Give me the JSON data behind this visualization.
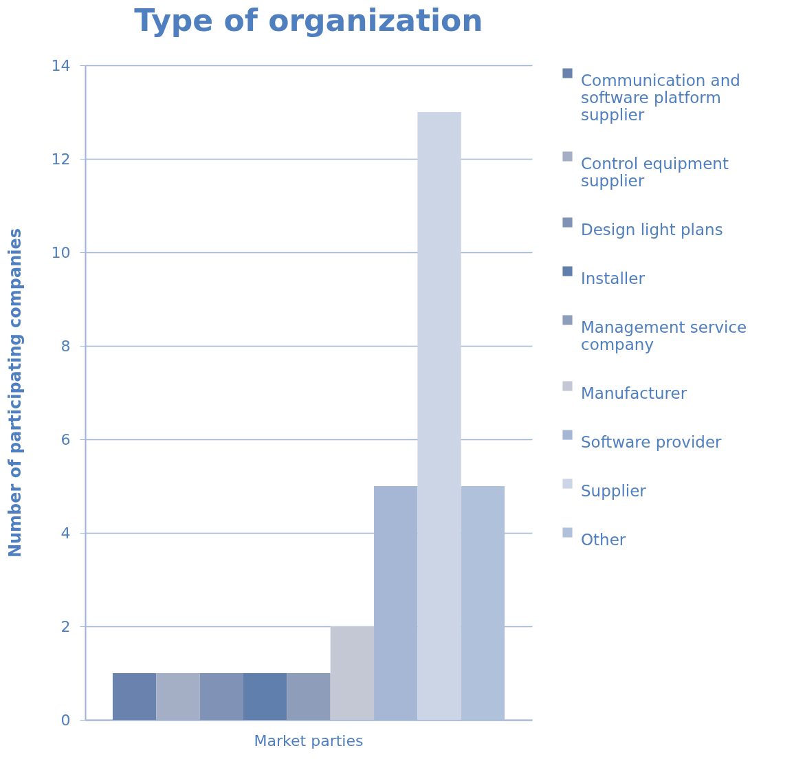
{
  "chart_data": {
    "type": "bar",
    "title": "Type of organization",
    "ylabel": "Number of participating companies",
    "categories": [
      "Market parties"
    ],
    "series": [
      {
        "name": "Communication and software platform supplier",
        "color": "#6983ae",
        "values": [
          1
        ]
      },
      {
        "name": "Control equipment supplier",
        "color": "#a4afc5",
        "values": [
          1
        ]
      },
      {
        "name": "Design light plans",
        "color": "#8093b7",
        "values": [
          1
        ]
      },
      {
        "name": "Installer",
        "color": "#607fac",
        "values": [
          1
        ]
      },
      {
        "name": "Management service company",
        "color": "#8e9eba",
        "values": [
          1
        ]
      },
      {
        "name": "Manufacturer",
        "color": "#c4c8d4",
        "values": [
          2
        ]
      },
      {
        "name": "Software provider",
        "color": "#a6b6d5",
        "values": [
          5
        ]
      },
      {
        "name": "Supplier",
        "color": "#cbd5e6",
        "values": [
          13
        ]
      },
      {
        "name": "Other",
        "color": "#b0c1dc",
        "values": [
          5
        ]
      }
    ],
    "ylim": [
      0,
      14
    ],
    "yticks": [
      0,
      2,
      4,
      6,
      8,
      10,
      12,
      14
    ],
    "grid": "y",
    "legend": "right"
  }
}
